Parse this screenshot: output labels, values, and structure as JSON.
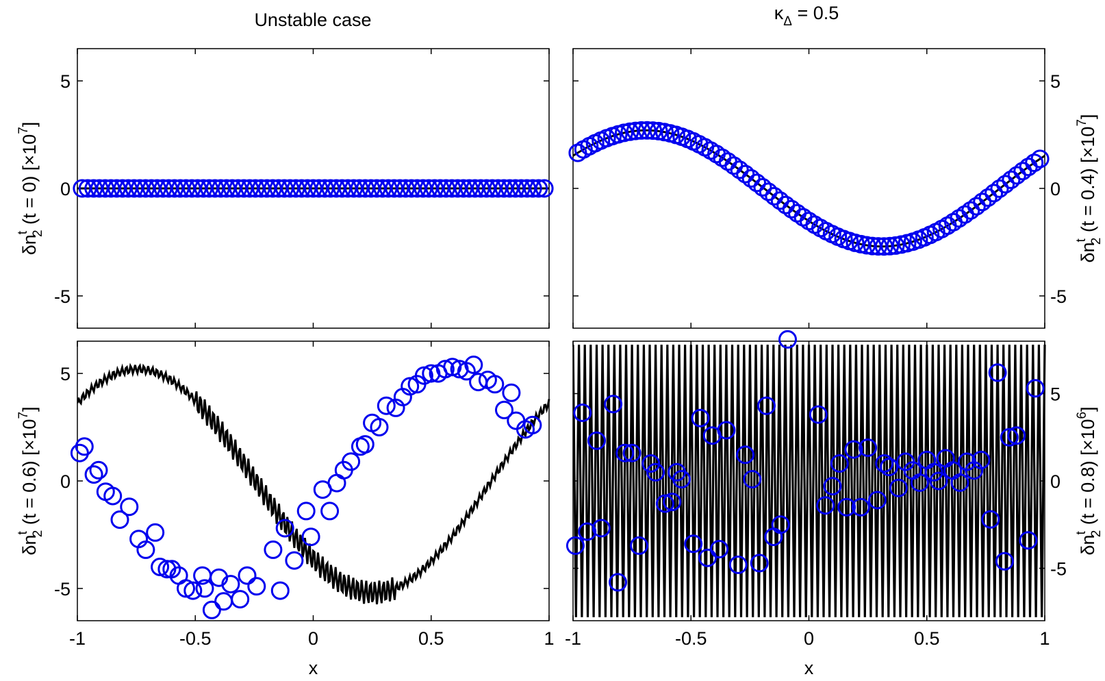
{
  "figure": {
    "title_left": "Unstable case",
    "title_right": "κ",
    "title_right_sub": "Δ",
    "title_right_value": " = 0.5"
  },
  "colors": {
    "marker": "#0000ee",
    "line": "#000000",
    "axis": "#000000"
  },
  "chart_data": [
    {
      "id": "tl",
      "type": "scatter",
      "ylabel": {
        "main": "δn",
        "sup": "t",
        "sub": "2",
        "rest": " (t = 0)",
        "scale_pre": "[×10",
        "scale_exp": "7",
        "scale_post": "]"
      },
      "xlabel": "",
      "xlim": [
        -1,
        1
      ],
      "ylim": [
        -6.5,
        6.5
      ],
      "xticks": [
        -1,
        -0.5,
        0,
        0.5,
        1
      ],
      "xticklabels": [
        "",
        "",
        "",
        "",
        ""
      ],
      "yticks": [
        -5,
        0,
        5
      ],
      "yticklabels": [
        "-5",
        "0",
        "5"
      ],
      "line": {
        "kind": "function",
        "f": "zero"
      },
      "markers": {
        "kind": "function",
        "f": "zero",
        "n": 81
      }
    },
    {
      "id": "tr",
      "type": "scatter",
      "ylabel": {
        "main": "δn",
        "sup": "t",
        "sub": "2",
        "rest": " (t = 0.4)",
        "scale_pre": "[×10",
        "scale_exp": "7",
        "scale_post": "]"
      },
      "xlabel": "",
      "xlim": [
        -1,
        1
      ],
      "ylim": [
        -6.5,
        6.5
      ],
      "xticks": [
        -1,
        -0.5,
        0,
        0.5,
        1
      ],
      "xticklabels": [
        "",
        "",
        "",
        "",
        ""
      ],
      "yticks": [
        -5,
        0,
        5
      ],
      "yticklabels": [
        "-5",
        "0",
        "5"
      ],
      "line": {
        "kind": "function",
        "f": "sine",
        "amp": 2.7,
        "phase": 0.19
      },
      "markers": {
        "kind": "function",
        "f": "sine",
        "amp": 2.7,
        "phase": 0.19,
        "n": 81
      }
    },
    {
      "id": "bl",
      "type": "scatter",
      "ylabel": {
        "main": "δn",
        "sup": "t",
        "sub": "2",
        "rest": " (t = 0.6)",
        "scale_pre": "[×10",
        "scale_exp": "7",
        "scale_post": "]"
      },
      "xlabel": "x",
      "xlim": [
        -1,
        1
      ],
      "ylim": [
        -6.5,
        6.5
      ],
      "xticks": [
        -1,
        -0.5,
        0,
        0.5,
        1
      ],
      "xticklabels": [
        "-1",
        "-0.5",
        "0",
        "0.5",
        "1"
      ],
      "yticks": [
        -5,
        0,
        5
      ],
      "yticklabels": [
        "-5",
        "0",
        "5"
      ],
      "line": {
        "kind": "function",
        "f": "sine_jagged",
        "amp": 5.2,
        "phase": 0.245
      },
      "markers": {
        "kind": "points",
        "points": [
          [
            -0.99,
            1.3
          ],
          [
            -0.97,
            1.6
          ],
          [
            -0.93,
            0.3
          ],
          [
            -0.91,
            0.5
          ],
          [
            -0.88,
            -0.5
          ],
          [
            -0.85,
            -0.7
          ],
          [
            -0.82,
            -1.8
          ],
          [
            -0.78,
            -1.2
          ],
          [
            -0.74,
            -2.7
          ],
          [
            -0.71,
            -3.2
          ],
          [
            -0.67,
            -2.4
          ],
          [
            -0.65,
            -4.0
          ],
          [
            -0.62,
            -4.1
          ],
          [
            -0.6,
            -4.1
          ],
          [
            -0.57,
            -4.4
          ],
          [
            -0.54,
            -5.0
          ],
          [
            -0.51,
            -5.1
          ],
          [
            -0.47,
            -4.4
          ],
          [
            -0.46,
            -5.0
          ],
          [
            -0.43,
            -6.0
          ],
          [
            -0.4,
            -4.5
          ],
          [
            -0.38,
            -5.6
          ],
          [
            -0.35,
            -4.8
          ],
          [
            -0.31,
            -5.5
          ],
          [
            -0.28,
            -4.4
          ],
          [
            -0.24,
            -4.9
          ],
          [
            -0.17,
            -3.2
          ],
          [
            -0.14,
            -5.1
          ],
          [
            -0.12,
            -2.2
          ],
          [
            -0.08,
            -3.7
          ],
          [
            -0.03,
            -1.4
          ],
          [
            -0.01,
            -2.6
          ],
          [
            0.04,
            -0.4
          ],
          [
            0.07,
            -1.4
          ],
          [
            0.1,
            -0.1
          ],
          [
            0.13,
            0.5
          ],
          [
            0.16,
            0.9
          ],
          [
            0.2,
            1.6
          ],
          [
            0.22,
            1.7
          ],
          [
            0.25,
            2.7
          ],
          [
            0.28,
            2.5
          ],
          [
            0.31,
            3.5
          ],
          [
            0.35,
            3.4
          ],
          [
            0.38,
            3.9
          ],
          [
            0.41,
            4.4
          ],
          [
            0.44,
            4.5
          ],
          [
            0.47,
            4.9
          ],
          [
            0.5,
            5.0
          ],
          [
            0.53,
            5.0
          ],
          [
            0.56,
            5.2
          ],
          [
            0.59,
            5.3
          ],
          [
            0.62,
            5.2
          ],
          [
            0.65,
            5.1
          ],
          [
            0.68,
            5.4
          ],
          [
            0.7,
            4.6
          ],
          [
            0.74,
            4.7
          ],
          [
            0.77,
            4.5
          ],
          [
            0.81,
            3.3
          ],
          [
            0.84,
            4.1
          ],
          [
            0.86,
            2.8
          ],
          [
            0.9,
            2.4
          ],
          [
            0.93,
            2.6
          ]
        ]
      }
    },
    {
      "id": "br",
      "type": "scatter",
      "ylabel": {
        "main": "δn",
        "sup": "t",
        "sub": "2",
        "rest": " (t = 0.8)",
        "scale_pre": "[×10",
        "scale_exp": "6",
        "scale_post": "]"
      },
      "xlabel": "x",
      "xlim": [
        -1,
        1
      ],
      "ylim": [
        -8,
        8
      ],
      "xticks": [
        -1,
        -0.5,
        0,
        0.5,
        1
      ],
      "xticklabels": [
        "-1",
        "-0.5",
        "0",
        "0.5",
        "1"
      ],
      "yticks": [
        -5,
        0,
        5
      ],
      "yticklabels": [
        "-5",
        "0",
        "5"
      ],
      "line": {
        "kind": "zigzag",
        "n": 160,
        "amp": 7.8
      },
      "markers": {
        "kind": "points",
        "points": [
          [
            -0.99,
            -3.7
          ],
          [
            -0.96,
            3.9
          ],
          [
            -0.94,
            -2.9
          ],
          [
            -0.9,
            2.3
          ],
          [
            -0.88,
            -2.7
          ],
          [
            -0.83,
            4.4
          ],
          [
            -0.81,
            -5.8
          ],
          [
            -0.78,
            1.6
          ],
          [
            -0.75,
            1.6
          ],
          [
            -0.72,
            -3.7
          ],
          [
            -0.67,
            1.0
          ],
          [
            -0.65,
            0.5
          ],
          [
            -0.61,
            -1.3
          ],
          [
            -0.58,
            -1.2
          ],
          [
            -0.56,
            0.5
          ],
          [
            -0.54,
            0.1
          ],
          [
            -0.49,
            -3.6
          ],
          [
            -0.46,
            3.6
          ],
          [
            -0.43,
            -4.4
          ],
          [
            -0.41,
            2.6
          ],
          [
            -0.38,
            -3.9
          ],
          [
            -0.35,
            2.9
          ],
          [
            -0.3,
            -4.8
          ],
          [
            -0.27,
            1.5
          ],
          [
            -0.24,
            0.1
          ],
          [
            -0.21,
            -4.7
          ],
          [
            -0.18,
            4.3
          ],
          [
            -0.15,
            -3.2
          ],
          [
            -0.12,
            -2.5
          ],
          [
            -0.09,
            8.1
          ],
          [
            0.04,
            3.8
          ],
          [
            0.07,
            -1.4
          ],
          [
            0.1,
            -0.3
          ],
          [
            0.13,
            1.0
          ],
          [
            0.16,
            -1.5
          ],
          [
            0.19,
            1.8
          ],
          [
            0.22,
            -1.5
          ],
          [
            0.25,
            1.9
          ],
          [
            0.29,
            -1.1
          ],
          [
            0.32,
            1.0
          ],
          [
            0.34,
            0.8
          ],
          [
            0.38,
            -0.4
          ],
          [
            0.41,
            1.1
          ],
          [
            0.44,
            0.6
          ],
          [
            0.47,
            -0.1
          ],
          [
            0.5,
            1.2
          ],
          [
            0.53,
            0.5
          ],
          [
            0.55,
            0.0
          ],
          [
            0.58,
            1.3
          ],
          [
            0.61,
            0.6
          ],
          [
            0.64,
            -0.1
          ],
          [
            0.67,
            1.1
          ],
          [
            0.7,
            0.6
          ],
          [
            0.73,
            1.2
          ],
          [
            0.77,
            -2.2
          ],
          [
            0.8,
            6.2
          ],
          [
            0.83,
            -4.6
          ],
          [
            0.85,
            2.5
          ],
          [
            0.88,
            2.6
          ],
          [
            0.93,
            -3.4
          ],
          [
            0.96,
            5.3
          ]
        ]
      }
    }
  ]
}
